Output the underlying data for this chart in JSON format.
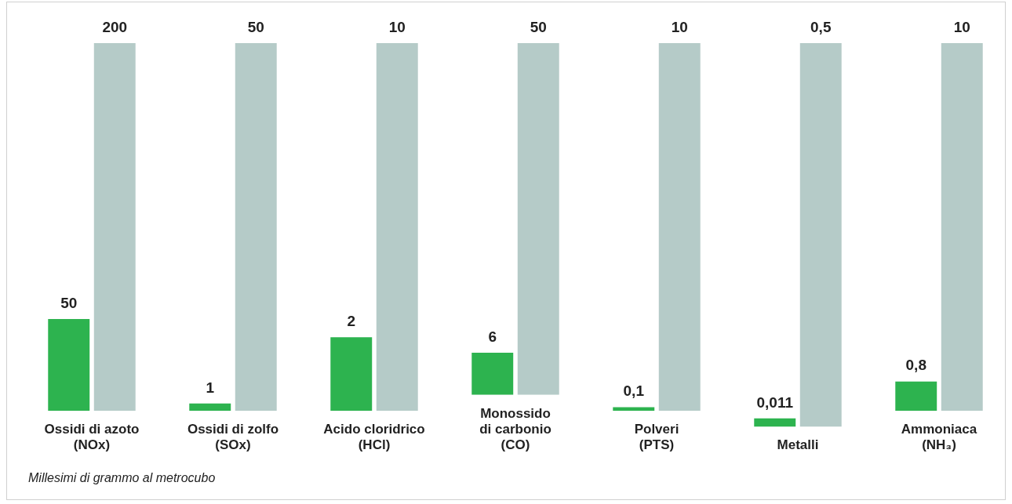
{
  "chart_data": [
    {
      "type": "bar",
      "categories": [
        "Ossidi di azoto\n(NOx)"
      ],
      "tick_labels": "x",
      "series": [
        {
          "color": "#2db34f",
          "values": [
            50
          ],
          "value_labels": [
            "50"
          ]
        },
        {
          "color": "#b5cbc8",
          "values": [
            200
          ],
          "value_labels": [
            "200"
          ]
        }
      ],
      "annotations": [
        "Millesimi di grammo al metrocubo"
      ]
    },
    {
      "type": "bar",
      "categories": [
        "Ossidi di zolfo\n(SOx)"
      ],
      "tick_labels": "x",
      "series": [
        {
          "color": "#2db34f",
          "values": [
            1
          ],
          "value_labels": [
            "1"
          ]
        },
        {
          "color": "#b5cbc8",
          "values": [
            50
          ],
          "value_labels": [
            "50"
          ]
        }
      ]
    },
    {
      "type": "bar",
      "categories": [
        "Acido cloridrico\n(HCl)"
      ],
      "tick_labels": "x",
      "series": [
        {
          "color": "#2db34f",
          "values": [
            2
          ],
          "value_labels": [
            "2"
          ]
        },
        {
          "color": "#b5cbc8",
          "values": [
            10
          ],
          "value_labels": [
            "10"
          ]
        }
      ]
    },
    {
      "type": "bar",
      "categories": [
        "Monossido\ndi carbonio\n(CO)"
      ],
      "tick_labels": "x",
      "series": [
        {
          "color": "#2db34f",
          "values": [
            6
          ],
          "value_labels": [
            "6"
          ]
        },
        {
          "color": "#b5cbc8",
          "values": [
            50
          ],
          "value_labels": [
            "50"
          ]
        }
      ]
    },
    {
      "type": "bar",
      "categories": [
        "Polveri\n(PTS)"
      ],
      "tick_labels": "x",
      "series": [
        {
          "color": "#2db34f",
          "values": [
            0.1
          ],
          "value_labels": [
            "0,1"
          ]
        },
        {
          "color": "#b5cbc8",
          "values": [
            10
          ],
          "value_labels": [
            "10"
          ]
        }
      ]
    },
    {
      "type": "bar",
      "categories": [
        "Metalli"
      ],
      "tick_labels": "x",
      "series": [
        {
          "color": "#2db34f",
          "values": [
            0.011
          ],
          "value_labels": [
            "0,011"
          ]
        },
        {
          "color": "#b5cbc8",
          "values": [
            0.5
          ],
          "value_labels": [
            "0,5"
          ]
        }
      ]
    },
    {
      "type": "bar",
      "categories": [
        "Ammoniaca\n(NH₃)"
      ],
      "tick_labels": "x",
      "series": [
        {
          "color": "#2db34f",
          "values": [
            0.8
          ],
          "value_labels": [
            "0,8"
          ]
        },
        {
          "color": "#b5cbc8",
          "values": [
            10
          ],
          "value_labels": [
            "10"
          ]
        }
      ]
    }
  ]
}
